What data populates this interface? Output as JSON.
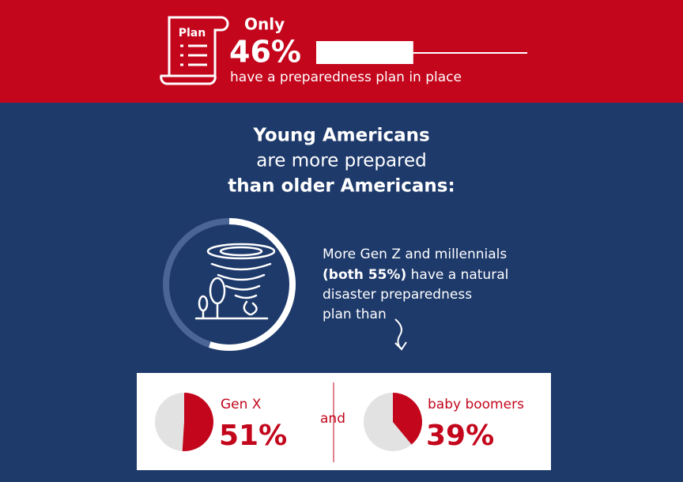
{
  "banner": {
    "icon_label": "Plan",
    "lead": "Only",
    "stat": {
      "value": 46,
      "label": "46%"
    },
    "text": "have a preparedness plan in place"
  },
  "headline": [
    "Young Americans",
    "are more prepared",
    "than older Americans:"
  ],
  "callout": {
    "value": 55,
    "line1": "More Gen Z and millennials",
    "bold": "(both 55%)",
    "line2_rest": " have a natural",
    "line3": "disaster preparedness",
    "line4": "plan than"
  },
  "comparison": {
    "connector": "and",
    "items": [
      {
        "name": "Gen X",
        "value": 51,
        "label": "51%"
      },
      {
        "name": "baby boomers",
        "value": 39,
        "label": "39%"
      }
    ]
  }
}
